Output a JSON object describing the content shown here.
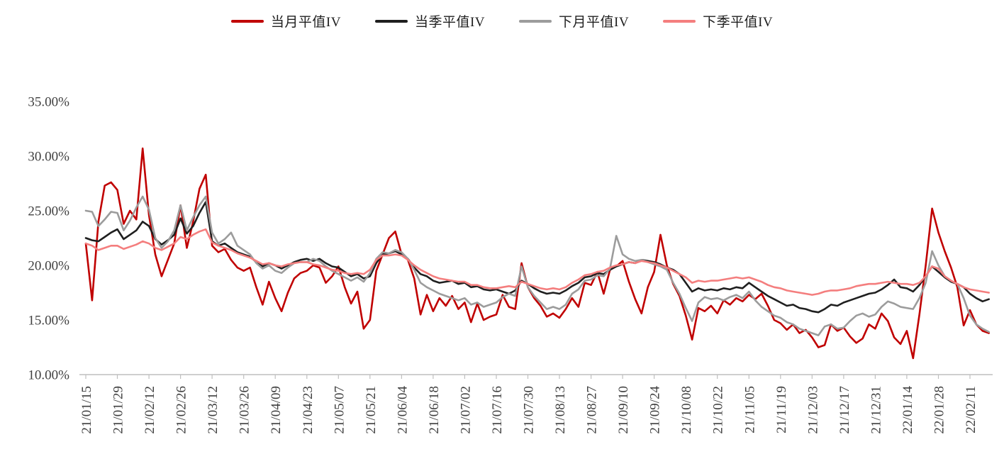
{
  "page": {
    "background": "#ffffff"
  },
  "legend": {
    "items": [
      {
        "label": "当月平值IV",
        "color": "#c00000"
      },
      {
        "label": "当季平值IV",
        "color": "#1f1f1f"
      },
      {
        "label": "下月平值IV",
        "color": "#9c9c9c"
      },
      {
        "label": "下季平值IV",
        "color": "#f47e7e"
      }
    ]
  },
  "chart_data": {
    "type": "line",
    "title": "",
    "xlabel": "",
    "ylabel": "",
    "unit": "percent",
    "grid": false,
    "legend_position": "top-center",
    "ylim": [
      10,
      35
    ],
    "y_tick_values": [
      10,
      15,
      20,
      25,
      30,
      35
    ],
    "y_tick_labels": [
      "10.00%",
      "15.00%",
      "20.00%",
      "25.00%",
      "30.00%",
      "35.00%"
    ],
    "x_tick_labels": [
      "21/01/15",
      "21/01/29",
      "21/02/12",
      "21/02/26",
      "21/03/12",
      "21/03/26",
      "21/04/09",
      "21/04/23",
      "21/05/07",
      "21/05/21",
      "21/06/04",
      "21/06/18",
      "21/07/02",
      "21/07/16",
      "21/07/30",
      "21/08/13",
      "21/08/27",
      "21/09/10",
      "21/09/24",
      "21/10/08",
      "21/10/22",
      "21/11/05",
      "21/11/19",
      "21/12/03",
      "21/12/17",
      "21/12/31",
      "22/01/14",
      "22/01/28",
      "22/02/11"
    ],
    "points_per_tick_interval": 5,
    "series": [
      {
        "name": "当月平值IV",
        "color": "#c00000",
        "values": [
          22.0,
          16.8,
          24.0,
          27.3,
          27.6,
          26.9,
          23.8,
          25.0,
          24.2,
          30.7,
          24.6,
          21.0,
          19.0,
          20.5,
          22.0,
          25.5,
          21.6,
          24.0,
          27.0,
          28.3,
          21.8,
          21.2,
          21.5,
          20.5,
          19.8,
          19.5,
          19.8,
          18.0,
          16.4,
          18.5,
          17.0,
          15.8,
          17.5,
          18.8,
          19.3,
          19.5,
          20.0,
          19.8,
          18.4,
          19.0,
          19.9,
          18.0,
          16.5,
          17.6,
          14.2,
          15.0,
          19.5,
          21.0,
          22.5,
          23.1,
          21.0,
          20.5,
          18.8,
          15.5,
          17.3,
          15.8,
          17.0,
          16.3,
          17.2,
          16.0,
          16.6,
          14.8,
          16.5,
          15.0,
          15.3,
          15.5,
          17.3,
          16.2,
          16.0,
          20.2,
          18.0,
          17.0,
          16.3,
          15.3,
          15.6,
          15.2,
          16.0,
          17.0,
          16.2,
          18.4,
          18.2,
          19.4,
          17.4,
          19.6,
          19.9,
          20.4,
          18.5,
          16.9,
          15.6,
          18.0,
          19.4,
          22.8,
          20.0,
          18.3,
          17.2,
          15.4,
          13.2,
          16.1,
          15.8,
          16.3,
          15.6,
          16.8,
          16.4,
          17.0,
          16.7,
          17.3,
          16.9,
          17.4,
          16.3,
          15.0,
          14.7,
          14.1,
          14.6,
          13.8,
          14.1,
          13.4,
          12.5,
          12.7,
          14.6,
          14.0,
          14.3,
          13.5,
          12.9,
          13.3,
          14.6,
          14.2,
          15.6,
          14.9,
          13.4,
          12.8,
          14.0,
          11.5,
          15.5,
          20.0,
          25.2,
          23.0,
          21.3,
          19.8,
          18.0,
          14.5,
          15.9,
          14.6,
          14.0,
          13.8
        ]
      },
      {
        "name": "当季平值IV",
        "color": "#1f1f1f",
        "values": [
          22.5,
          22.3,
          22.2,
          22.6,
          23.0,
          23.3,
          22.4,
          22.8,
          23.2,
          24.0,
          23.6,
          22.4,
          21.9,
          22.3,
          22.8,
          24.3,
          22.9,
          23.6,
          24.8,
          25.8,
          22.2,
          21.8,
          22.0,
          21.6,
          21.2,
          21.0,
          20.8,
          20.3,
          19.9,
          20.2,
          20.0,
          19.7,
          20.0,
          20.3,
          20.5,
          20.6,
          20.4,
          20.6,
          20.2,
          19.9,
          19.8,
          19.4,
          19.0,
          19.2,
          18.8,
          19.0,
          20.2,
          21.0,
          21.1,
          21.3,
          21.0,
          20.6,
          19.8,
          19.2,
          19.0,
          18.6,
          18.4,
          18.5,
          18.6,
          18.3,
          18.4,
          18.0,
          18.1,
          17.8,
          17.7,
          17.8,
          17.6,
          17.4,
          17.7,
          18.6,
          18.3,
          17.9,
          17.6,
          17.4,
          17.5,
          17.4,
          17.7,
          18.1,
          18.4,
          18.9,
          19.0,
          19.3,
          19.2,
          19.6,
          19.9,
          20.1,
          20.3,
          20.2,
          20.5,
          20.4,
          20.3,
          20.1,
          19.8,
          19.6,
          19.2,
          18.4,
          17.6,
          17.9,
          17.7,
          17.8,
          17.7,
          17.9,
          17.8,
          18.0,
          17.9,
          18.4,
          18.0,
          17.6,
          17.2,
          16.9,
          16.6,
          16.3,
          16.4,
          16.1,
          16.0,
          15.8,
          15.7,
          16.0,
          16.4,
          16.3,
          16.6,
          16.8,
          17.0,
          17.2,
          17.4,
          17.5,
          17.8,
          18.2,
          18.7,
          18.0,
          17.9,
          17.6,
          18.2,
          19.0,
          19.9,
          19.4,
          18.9,
          18.5,
          18.3,
          18.0,
          17.4,
          17.0,
          16.7,
          16.9
        ]
      },
      {
        "name": "下月平值IV",
        "color": "#9c9c9c",
        "values": [
          25.0,
          24.9,
          23.6,
          24.2,
          24.9,
          24.8,
          23.2,
          24.1,
          25.3,
          26.3,
          25.1,
          22.5,
          21.6,
          22.2,
          23.2,
          25.5,
          23.2,
          24.4,
          25.5,
          26.3,
          23.0,
          22.0,
          22.4,
          23.0,
          21.8,
          21.4,
          21.0,
          20.2,
          19.7,
          20.0,
          19.5,
          19.3,
          19.8,
          20.2,
          20.3,
          20.3,
          20.6,
          20.4,
          19.9,
          19.5,
          19.2,
          18.9,
          18.6,
          18.9,
          18.5,
          19.3,
          20.6,
          21.2,
          21.1,
          21.4,
          21.2,
          20.6,
          19.6,
          18.4,
          18.0,
          17.7,
          17.4,
          17.2,
          17.0,
          16.8,
          17.0,
          16.4,
          16.6,
          16.2,
          16.4,
          16.6,
          17.1,
          17.4,
          17.2,
          19.9,
          18.0,
          17.2,
          16.6,
          16.0,
          16.2,
          16.0,
          16.4,
          17.4,
          17.8,
          18.6,
          18.7,
          19.1,
          19.0,
          19.7,
          22.7,
          21.0,
          20.6,
          20.4,
          20.5,
          20.3,
          20.1,
          19.9,
          19.6,
          18.4,
          17.4,
          16.1,
          14.9,
          16.6,
          17.1,
          16.9,
          17.0,
          16.8,
          17.1,
          17.3,
          17.0,
          17.6,
          16.8,
          16.2,
          15.8,
          15.4,
          15.2,
          14.8,
          14.6,
          14.2,
          14.0,
          13.8,
          13.6,
          14.4,
          14.6,
          14.2,
          14.3,
          14.9,
          15.4,
          15.6,
          15.3,
          15.5,
          16.2,
          16.7,
          16.5,
          16.2,
          16.1,
          16.0,
          17.0,
          18.4,
          21.3,
          20.0,
          19.0,
          18.6,
          18.3,
          17.0,
          15.4,
          14.6,
          14.2,
          13.9
        ]
      },
      {
        "name": "下季平值IV",
        "color": "#f47e7e",
        "values": [
          22.0,
          21.8,
          21.4,
          21.6,
          21.8,
          21.8,
          21.5,
          21.7,
          21.9,
          22.2,
          22.0,
          21.6,
          21.4,
          21.7,
          22.0,
          22.6,
          22.4,
          22.8,
          23.1,
          23.3,
          22.1,
          21.8,
          21.6,
          21.4,
          21.1,
          20.9,
          20.7,
          20.4,
          20.1,
          20.2,
          20.0,
          19.9,
          20.1,
          20.2,
          20.3,
          20.3,
          20.1,
          20.0,
          19.8,
          19.6,
          19.5,
          19.3,
          19.2,
          19.3,
          19.2,
          19.6,
          20.5,
          20.9,
          20.9,
          21.0,
          20.9,
          20.5,
          20.0,
          19.6,
          19.3,
          19.0,
          18.8,
          18.7,
          18.6,
          18.5,
          18.5,
          18.2,
          18.2,
          18.0,
          17.9,
          17.9,
          18.0,
          18.1,
          18.0,
          18.5,
          18.3,
          18.1,
          17.9,
          17.8,
          17.9,
          17.8,
          18.0,
          18.4,
          18.7,
          19.1,
          19.2,
          19.4,
          19.5,
          19.8,
          20.0,
          20.1,
          20.3,
          20.2,
          20.4,
          20.3,
          20.2,
          20.0,
          19.8,
          19.5,
          19.2,
          18.9,
          18.4,
          18.6,
          18.5,
          18.6,
          18.6,
          18.7,
          18.8,
          18.9,
          18.8,
          18.9,
          18.7,
          18.5,
          18.2,
          18.0,
          17.9,
          17.7,
          17.6,
          17.5,
          17.4,
          17.3,
          17.4,
          17.6,
          17.7,
          17.7,
          17.8,
          17.9,
          18.1,
          18.2,
          18.3,
          18.3,
          18.4,
          18.5,
          18.4,
          18.3,
          18.3,
          18.2,
          18.4,
          19.0,
          19.9,
          19.7,
          19.0,
          18.6,
          18.3,
          18.0,
          17.8,
          17.7,
          17.6,
          17.5
        ]
      }
    ]
  }
}
